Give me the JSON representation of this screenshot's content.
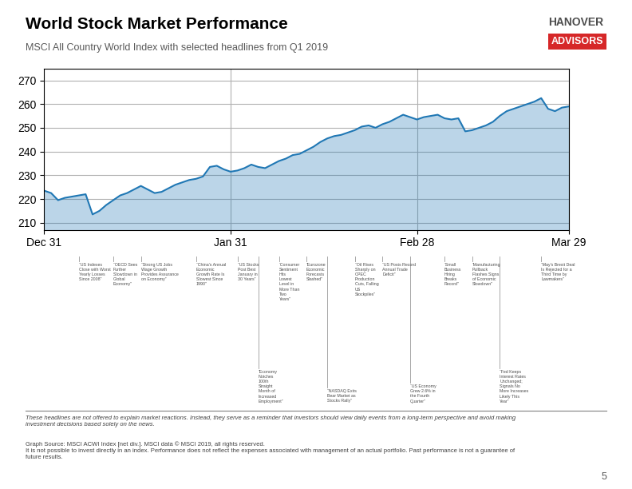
{
  "chart_data": {
    "type": "area",
    "title": "World Stock Market Performance",
    "subtitle": "MSCI All Country World Index with selected headlines from Q1 2019",
    "x": [
      0,
      1,
      2,
      3,
      4,
      5,
      6,
      7,
      8,
      9,
      10,
      11,
      12,
      13,
      14,
      15,
      16,
      17,
      18,
      19,
      20,
      21,
      22,
      23,
      24,
      25,
      26,
      27,
      28,
      29,
      30,
      31,
      32,
      33,
      34,
      35,
      36,
      37,
      38,
      39,
      40,
      41,
      42,
      43,
      44,
      45,
      46,
      47,
      48,
      49,
      50,
      51,
      52,
      53,
      54,
      55,
      56,
      57,
      58,
      59,
      60,
      61,
      62,
      63,
      64,
      65,
      66,
      67,
      68,
      69,
      70,
      71,
      72,
      73,
      74,
      75,
      76
    ],
    "values": [
      223.5,
      222.5,
      219.5,
      220.5,
      221.0,
      221.5,
      222.0,
      213.5,
      215.0,
      217.5,
      219.5,
      221.5,
      222.5,
      224.0,
      225.5,
      224.0,
      222.5,
      223.0,
      224.5,
      226.0,
      227.0,
      228.0,
      228.5,
      229.5,
      233.5,
      234.0,
      232.5,
      231.5,
      232.0,
      233.0,
      234.5,
      233.5,
      233.0,
      234.5,
      236.0,
      237.0,
      238.5,
      239.0,
      240.5,
      242.0,
      244.0,
      245.5,
      246.5,
      247.0,
      248.0,
      249.0,
      250.5,
      251.0,
      250.0,
      251.5,
      252.5,
      254.0,
      255.5,
      254.5,
      253.5,
      254.5,
      255.0,
      255.5,
      254.0,
      253.5,
      254.0,
      248.5,
      249.0,
      250.0,
      251.0,
      252.5,
      255.0,
      257.0,
      258.0,
      259.0,
      260.0,
      261.0,
      262.5,
      258.0,
      257.0,
      258.5,
      259.0
    ],
    "xlim": [
      0,
      76
    ],
    "xticks": [
      {
        "value": 0,
        "label": "Dec 31"
      },
      {
        "value": 27,
        "label": "Jan 31"
      },
      {
        "value": 54,
        "label": "Feb 28"
      },
      {
        "value": 76,
        "label": "Mar 29"
      }
    ],
    "ylim": [
      207,
      275
    ],
    "yticks": [
      210,
      220,
      230,
      240,
      250,
      260,
      270
    ],
    "grid": true,
    "annotations": [
      {
        "x": 5,
        "text": "“US Indexes\nClose with Worst\nYearly Losses\nSince 2008”"
      },
      {
        "x": 10,
        "text": "“OECD Sees\nFurther\nSlowdown in\nGlobal\nEconomy”"
      },
      {
        "x": 14,
        "text": "“Strong US Jobs\nWage Growth\nProvides Assurance\non Economy”"
      },
      {
        "x": 22,
        "text": "“China’s Annual\nEconomic\nGrowth Rate Is\nSlowest Since\n1990”"
      },
      {
        "x": 28,
        "text": "“US Stocks\nPost Best\nJanuary in\n30 Years”"
      },
      {
        "x": 31,
        "text": "“Economy\nNotches\n100th\nStraight\nMonth of\nIncreased\nEmployment”"
      },
      {
        "x": 34,
        "text": "“Consumer\nSentiment\nHits\nLowest\nLevel in\nMore Than\nTwo\nYears”"
      },
      {
        "x": 38,
        "text": "“Eurozone\nEconomic\nForecasts\nSlashed”"
      },
      {
        "x": 41,
        "text": "“NASDAQ Exits\nBear Market as\nStocks Rally”"
      },
      {
        "x": 45,
        "text": "“Oil Rises\nSharply on\nOPEC\nProduction\nCuts, Falling\nUS\nStockpiles”"
      },
      {
        "x": 49,
        "text": "“US Posts Record\nAnnual Trade\nDeficit”"
      },
      {
        "x": 53,
        "text": "“US Economy\nGrew 2.6% in\nthe Fourth\nQuarter”"
      },
      {
        "x": 58,
        "text": "“Small\nBusiness\nHiring\nBreaks\nRecord”"
      },
      {
        "x": 62,
        "text": "“Manufacturing\nPullback\nFlashes Signs\nof Economic\nSlowdown”"
      },
      {
        "x": 66,
        "text": "“Fed Keeps\nInterest Rates\nUnchanged;\nSignals No\nMore Increases\nLikely This\nYear”"
      },
      {
        "x": 72,
        "text": "“May’s Brexit Deal\nIs Rejected for a\nThird Time by\nLawmakers”"
      }
    ],
    "logo": [
      "HANOVER",
      "ADVISORS"
    ],
    "notes": [
      "These headlines are not offered to explain market reactions. Instead, they serve as a reminder that investors should view daily events from a long-term perspective and avoid making\ninvestment decisions based solely on the news.",
      "Graph Source: MSCI ACWI Index [net div.]. MSCI data © MSCI 2019, all rights reserved.\nIt is not possible to invest directly in an index. Performance does not reflect the expenses associated with management of an actual portfolio. Past performance is not a guarantee of\nfuture results."
    ],
    "page": "5"
  }
}
